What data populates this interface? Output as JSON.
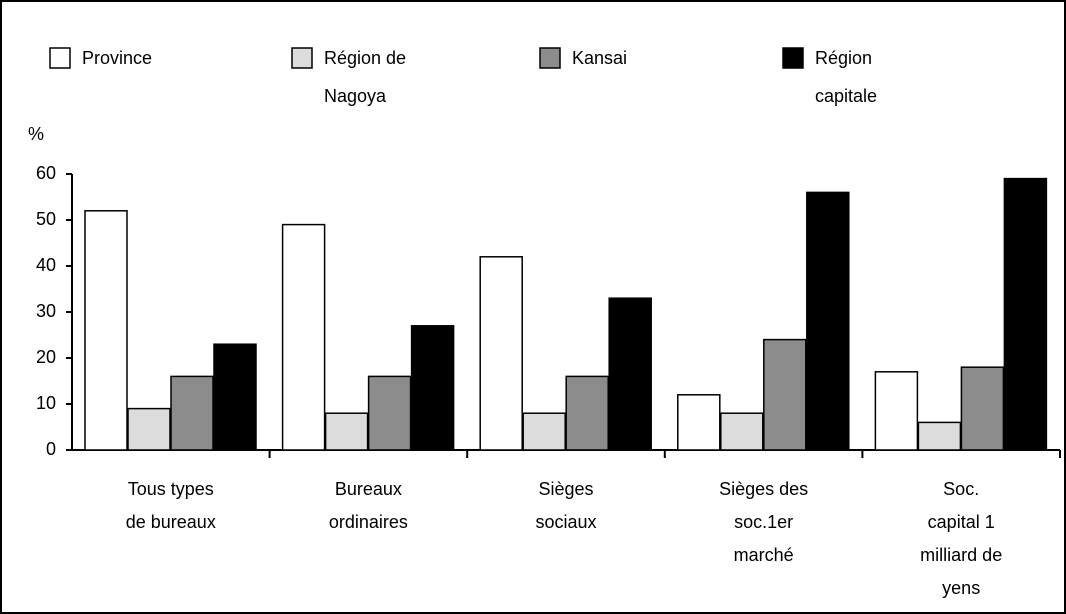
{
  "chart_data": {
    "type": "bar",
    "y_axis_label": "%",
    "categories": [
      [
        "Tous types",
        "de bureaux"
      ],
      [
        "Bureaux",
        "ordinaires"
      ],
      [
        "Sièges",
        "sociaux"
      ],
      [
        "Sièges des",
        "soc.1er",
        "marché"
      ],
      [
        "Soc.",
        "capital    1",
        "milliard de",
        "yens"
      ]
    ],
    "series": [
      {
        "name": "Province",
        "color": "#ffffff",
        "values": [
          52,
          49,
          42,
          12,
          17
        ]
      },
      {
        "name": "Région de Nagoya",
        "color": "#dcdcdc",
        "values": [
          9,
          8,
          8,
          8,
          6
        ]
      },
      {
        "name": "Kansai",
        "color": "#8c8c8c",
        "values": [
          16,
          16,
          16,
          24,
          18
        ]
      },
      {
        "name": "Région capitale",
        "color": "#000000",
        "values": [
          23,
          27,
          33,
          56,
          59
        ]
      }
    ],
    "ylim": [
      0,
      60
    ],
    "yticks": [
      0,
      10,
      20,
      30,
      40,
      50,
      60
    ],
    "grid": false,
    "legend": "top"
  }
}
